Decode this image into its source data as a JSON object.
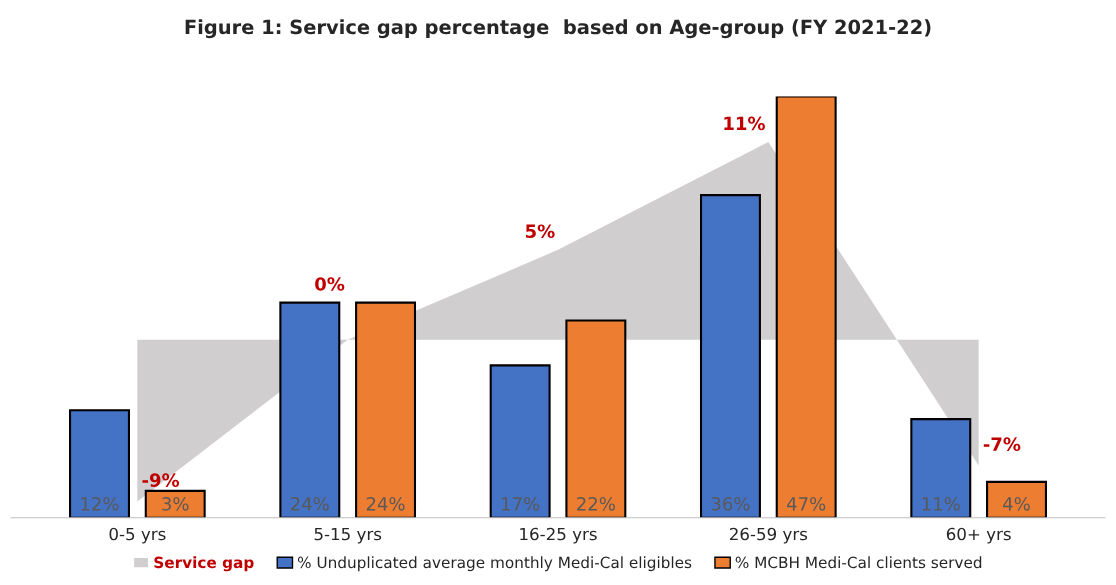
{
  "chart_data": {
    "type": "bar",
    "title": "Figure 1: Service gap percentage  based on Age-group (FY 2021-22)",
    "categories": [
      "0-5 yrs",
      "5-15 yrs",
      "16-25 yrs",
      "26-59 yrs",
      "60+ yrs"
    ],
    "series": [
      {
        "name": "Service gap",
        "type": "area",
        "axis": "y2",
        "color": "#d0cece",
        "values": [
          -9,
          0,
          5,
          11,
          -7
        ],
        "value_labels": [
          "-9%",
          "0%",
          "5%",
          "11%",
          "-7%"
        ]
      },
      {
        "name": "% Unduplicated average monthly Medi-Cal eligibles",
        "color": "#4472c4",
        "values": [
          12,
          24,
          17,
          36,
          11
        ],
        "value_labels": [
          "12%",
          "24%",
          "17%",
          "36%",
          "11%"
        ]
      },
      {
        "name": "% MCBH Medi-Cal clients served",
        "color": "#ed7d31",
        "values": [
          3,
          24,
          22,
          47,
          4
        ],
        "value_labels": [
          "3%",
          "24%",
          "22%",
          "47%",
          "4%"
        ]
      }
    ],
    "legend": "bottom",
    "grid": false
  }
}
